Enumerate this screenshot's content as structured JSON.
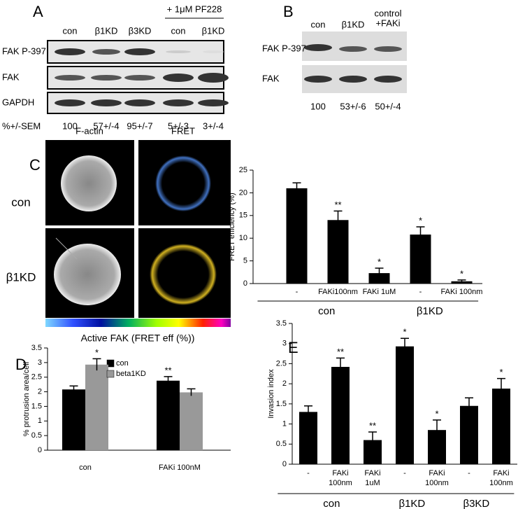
{
  "panels": [
    "A",
    "B",
    "C",
    "D",
    "E"
  ],
  "blot_a": {
    "columns": [
      "con",
      "β1KD",
      "β3KD",
      "con",
      "β1KD"
    ],
    "treatment": "+ 1μM PF228",
    "rows": [
      "FAK P-397",
      "FAK",
      "GAPDH"
    ],
    "quant_label": "%+/-SEM",
    "quant": [
      "100",
      "57+/-4",
      "95+/-7",
      "5+/-3",
      "3+/-4"
    ]
  },
  "blot_b": {
    "columns": [
      "con",
      "β1KD",
      "control",
      "+FAKi"
    ],
    "rows": [
      "FAK P-397",
      "FAK"
    ],
    "quant": [
      "100",
      "53+/-6",
      "50+/-4"
    ]
  },
  "imaging": {
    "columns": [
      "F-actin",
      "FRET"
    ],
    "rows": [
      "con",
      "β1KD"
    ],
    "colorbar_label": "Active FAK (FRET eff (%))"
  },
  "chart_data": [
    {
      "type": "bar",
      "ylabel": "FRET efficiency (%)",
      "categories": [
        "-",
        "FAKi100nm",
        "FAKi 1uM",
        "-",
        "FAKi 100nm"
      ],
      "groups": [
        "con",
        "β1KD"
      ],
      "values": [
        21,
        14,
        2.3,
        10.8,
        0.5
      ],
      "errors": [
        1.2,
        2,
        1.1,
        1.7,
        0.3
      ],
      "annotations": [
        null,
        "**",
        "*",
        "*",
        "*"
      ],
      "color": "#000000",
      "ylim": [
        0,
        25
      ],
      "yticks": [
        0,
        5,
        10,
        15,
        20,
        25
      ]
    },
    {
      "type": "grouped_bar",
      "ylabel": "% protrusion area/cell",
      "categories": [
        "con",
        "FAKi 100nM"
      ],
      "series": [
        {
          "name": "con",
          "color": "#000000",
          "values": [
            2.08,
            2.38
          ],
          "errors": [
            0.12,
            0.14
          ],
          "annotations": [
            null,
            "**"
          ]
        },
        {
          "name": "beta1KD",
          "color": "#999999",
          "values": [
            2.93,
            1.98
          ],
          "errors": [
            0.2,
            0.12
          ],
          "annotations": [
            "*",
            null
          ]
        }
      ],
      "ylim": [
        0,
        3.5
      ],
      "yticks": [
        0,
        0.5,
        1,
        1.5,
        2,
        2.5,
        3,
        3.5
      ]
    },
    {
      "type": "bar",
      "ylabel": "Invasion index",
      "categories": [
        "-",
        "FAKi 100nm",
        "FAKi 1uM",
        "-",
        "FAKi 100nm",
        "-",
        "FAKi 100nm"
      ],
      "groups": [
        "con",
        "β1KD",
        "β3KD"
      ],
      "values": [
        1.3,
        2.42,
        0.6,
        2.93,
        0.85,
        1.45,
        1.88
      ],
      "errors": [
        0.15,
        0.22,
        0.2,
        0.2,
        0.25,
        0.2,
        0.25
      ],
      "annotations": [
        null,
        "**",
        "**",
        "*",
        "*",
        null,
        "*"
      ],
      "color": "#000000",
      "ylim": [
        0,
        3.5
      ],
      "yticks": [
        0,
        0.5,
        1,
        1.5,
        2,
        2.5,
        3,
        3.5
      ]
    }
  ]
}
